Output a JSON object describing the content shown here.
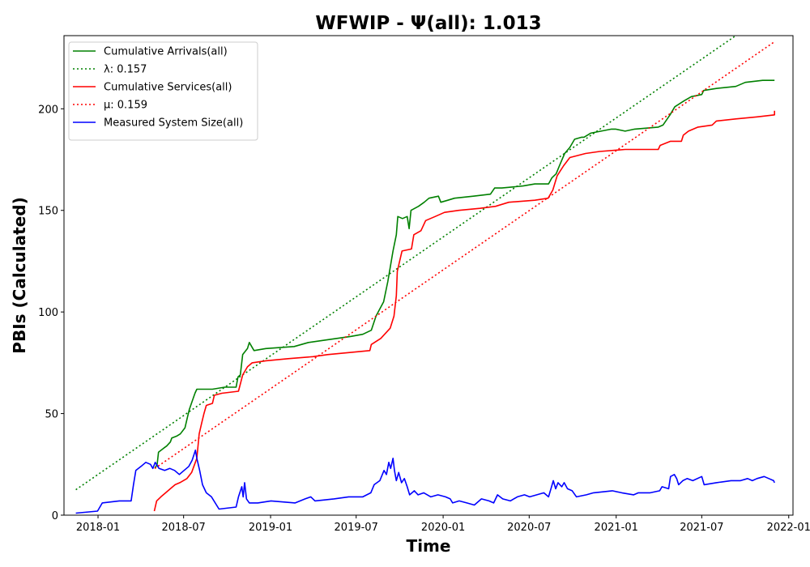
{
  "chart_data": {
    "type": "line",
    "title": "WFWIP -  Ψ(all): 1.013",
    "xlabel": "Time",
    "ylabel": "PBIs (Calculated)",
    "xlim": [
      "2017-10-21",
      "2022-01-10"
    ],
    "ylim": [
      0,
      236
    ],
    "x_ticks": [
      "2018-01",
      "2018-07",
      "2019-01",
      "2019-07",
      "2020-01",
      "2020-07",
      "2021-01",
      "2021-07",
      "2022-01"
    ],
    "y_ticks": [
      0,
      50,
      100,
      150,
      200
    ],
    "grid": false,
    "legend_position": "top-left",
    "series": [
      {
        "name": "Cumulative Arrivals(all)",
        "color": "#008000",
        "style": "solid",
        "points": [
          [
            "2018-05-01",
            23
          ],
          [
            "2018-05-06",
            25
          ],
          [
            "2018-05-09",
            31
          ],
          [
            "2018-05-20",
            33
          ],
          [
            "2018-05-26",
            34
          ],
          [
            "2018-06-03",
            36
          ],
          [
            "2018-06-06",
            38
          ],
          [
            "2018-06-17",
            39
          ],
          [
            "2018-06-24",
            40
          ],
          [
            "2018-07-04",
            43
          ],
          [
            "2018-07-09",
            48
          ],
          [
            "2018-07-13",
            52
          ],
          [
            "2018-07-19",
            56
          ],
          [
            "2018-07-25",
            60
          ],
          [
            "2018-07-29",
            62
          ],
          [
            "2018-08-08",
            62
          ],
          [
            "2018-08-31",
            62
          ],
          [
            "2018-09-26",
            63
          ],
          [
            "2018-10-20",
            63
          ],
          [
            "2018-10-24",
            68
          ],
          [
            "2018-10-29",
            69
          ],
          [
            "2018-11-03",
            79
          ],
          [
            "2018-11-13",
            82
          ],
          [
            "2018-11-17",
            85
          ],
          [
            "2018-11-27",
            81
          ],
          [
            "2018-12-22",
            82
          ],
          [
            "2019-02-20",
            83
          ],
          [
            "2019-03-22",
            85
          ],
          [
            "2019-04-21",
            86
          ],
          [
            "2019-06-20",
            88
          ],
          [
            "2019-07-15",
            89
          ],
          [
            "2019-08-02",
            91
          ],
          [
            "2019-08-12",
            98
          ],
          [
            "2019-08-28",
            105
          ],
          [
            "2019-09-06",
            115
          ],
          [
            "2019-09-17",
            130
          ],
          [
            "2019-09-24",
            138
          ],
          [
            "2019-09-27",
            147
          ],
          [
            "2019-10-07",
            146
          ],
          [
            "2019-10-17",
            147
          ],
          [
            "2019-10-21",
            141
          ],
          [
            "2019-10-25",
            150
          ],
          [
            "2019-11-10",
            152
          ],
          [
            "2019-11-22",
            154
          ],
          [
            "2019-12-02",
            156
          ],
          [
            "2019-12-22",
            157
          ],
          [
            "2019-12-27",
            154
          ],
          [
            "2020-01-11",
            155
          ],
          [
            "2020-01-25",
            156
          ],
          [
            "2020-03-05",
            157
          ],
          [
            "2020-04-10",
            158
          ],
          [
            "2020-04-19",
            161
          ],
          [
            "2020-05-04",
            161
          ],
          [
            "2020-06-18",
            162
          ],
          [
            "2020-07-13",
            163
          ],
          [
            "2020-08-11",
            163
          ],
          [
            "2020-08-18",
            166
          ],
          [
            "2020-08-27",
            168
          ],
          [
            "2020-09-03",
            172
          ],
          [
            "2020-09-14",
            178
          ],
          [
            "2020-09-25",
            181
          ],
          [
            "2020-10-05",
            185
          ],
          [
            "2020-10-20",
            186
          ],
          [
            "2020-10-25",
            186
          ],
          [
            "2020-11-08",
            188
          ],
          [
            "2020-12-22",
            190
          ],
          [
            "2020-12-31",
            190
          ],
          [
            "2021-01-20",
            189
          ],
          [
            "2021-02-09",
            190
          ],
          [
            "2021-03-31",
            191
          ],
          [
            "2021-04-10",
            192
          ],
          [
            "2021-04-25",
            197
          ],
          [
            "2021-05-05",
            201
          ],
          [
            "2021-05-25",
            204
          ],
          [
            "2021-06-09",
            206
          ],
          [
            "2021-07-01",
            207
          ],
          [
            "2021-07-05",
            209
          ],
          [
            "2021-08-01",
            210
          ],
          [
            "2021-09-11",
            211
          ],
          [
            "2021-10-01",
            213
          ],
          [
            "2021-11-07",
            214
          ],
          [
            "2021-11-20",
            214
          ],
          [
            "2021-12-02",
            214
          ]
        ]
      },
      {
        "name": "λ: 0.157",
        "color": "#008000",
        "style": "dotted",
        "points": [
          [
            "2017-11-15",
            12.5
          ],
          [
            "2021-09-11",
            236
          ]
        ]
      },
      {
        "name": "Cumulative Services(all)",
        "color": "#ff0000",
        "style": "solid",
        "points": [
          [
            "2018-04-30",
            2
          ],
          [
            "2018-05-05",
            7
          ],
          [
            "2018-05-14",
            9
          ],
          [
            "2018-05-24",
            11
          ],
          [
            "2018-06-03",
            13
          ],
          [
            "2018-06-13",
            15
          ],
          [
            "2018-06-23",
            16
          ],
          [
            "2018-07-08",
            18
          ],
          [
            "2018-07-18",
            21
          ],
          [
            "2018-07-29",
            28
          ],
          [
            "2018-08-03",
            40
          ],
          [
            "2018-08-08",
            45
          ],
          [
            "2018-08-13",
            50
          ],
          [
            "2018-08-18",
            54
          ],
          [
            "2018-08-31",
            55
          ],
          [
            "2018-09-04",
            59
          ],
          [
            "2018-09-20",
            60
          ],
          [
            "2018-10-25",
            61
          ],
          [
            "2018-11-03",
            69
          ],
          [
            "2018-11-13",
            73
          ],
          [
            "2018-11-23",
            75
          ],
          [
            "2018-12-22",
            76
          ],
          [
            "2019-02-07",
            77
          ],
          [
            "2019-04-01",
            78
          ],
          [
            "2019-05-01",
            79
          ],
          [
            "2019-06-15",
            80
          ],
          [
            "2019-07-30",
            81
          ],
          [
            "2019-08-02",
            84
          ],
          [
            "2019-08-22",
            87
          ],
          [
            "2019-09-11",
            92
          ],
          [
            "2019-09-19",
            98
          ],
          [
            "2019-09-24",
            108
          ],
          [
            "2019-09-26",
            120
          ],
          [
            "2019-10-01",
            125
          ],
          [
            "2019-10-06",
            130
          ],
          [
            "2019-10-26",
            131
          ],
          [
            "2019-10-31",
            138
          ],
          [
            "2019-11-15",
            140
          ],
          [
            "2019-11-25",
            145
          ],
          [
            "2019-12-15",
            147
          ],
          [
            "2020-01-04",
            149
          ],
          [
            "2020-02-03",
            150
          ],
          [
            "2020-03-19",
            151
          ],
          [
            "2020-04-21",
            152
          ],
          [
            "2020-05-19",
            154
          ],
          [
            "2020-07-13",
            155
          ],
          [
            "2020-08-10",
            156
          ],
          [
            "2020-08-20",
            160
          ],
          [
            "2020-08-29",
            167
          ],
          [
            "2020-09-12",
            172
          ],
          [
            "2020-09-25",
            176
          ],
          [
            "2020-10-28",
            178
          ],
          [
            "2020-11-27",
            179
          ],
          [
            "2021-01-20",
            180
          ],
          [
            "2021-03-31",
            180
          ],
          [
            "2021-04-04",
            182
          ],
          [
            "2021-04-26",
            184
          ],
          [
            "2021-05-19",
            184
          ],
          [
            "2021-05-23",
            187
          ],
          [
            "2021-06-03",
            189
          ],
          [
            "2021-06-23",
            191
          ],
          [
            "2021-07-23",
            192
          ],
          [
            "2021-08-01",
            194
          ],
          [
            "2021-09-11",
            195
          ],
          [
            "2021-10-26",
            196
          ],
          [
            "2021-12-02",
            197
          ],
          [
            "2021-12-02",
            199
          ]
        ]
      },
      {
        "name": "μ: 0.159",
        "color": "#ff0000",
        "style": "dotted",
        "points": [
          [
            "2018-05-01",
            23
          ],
          [
            "2021-12-02",
            233
          ]
        ]
      },
      {
        "name": "Measured System Size(all)",
        "color": "#0000ff",
        "style": "solid",
        "points": [
          [
            "2017-11-15",
            1
          ],
          [
            "2017-12-31",
            2
          ],
          [
            "2018-01-10",
            6
          ],
          [
            "2018-02-15",
            7
          ],
          [
            "2018-03-12",
            7
          ],
          [
            "2018-03-17",
            15
          ],
          [
            "2018-03-22",
            22
          ],
          [
            "2018-04-02",
            24
          ],
          [
            "2018-04-12",
            26
          ],
          [
            "2018-04-22",
            25
          ],
          [
            "2018-04-27",
            23
          ],
          [
            "2018-05-02",
            26
          ],
          [
            "2018-05-10",
            23
          ],
          [
            "2018-05-22",
            22
          ],
          [
            "2018-06-02",
            23
          ],
          [
            "2018-06-12",
            22
          ],
          [
            "2018-06-22",
            20
          ],
          [
            "2018-07-02",
            22
          ],
          [
            "2018-07-12",
            24
          ],
          [
            "2018-07-19",
            27
          ],
          [
            "2018-07-26",
            32
          ],
          [
            "2018-07-29",
            28
          ],
          [
            "2018-08-04",
            22
          ],
          [
            "2018-08-10",
            15
          ],
          [
            "2018-08-18",
            11
          ],
          [
            "2018-08-29",
            9
          ],
          [
            "2018-09-14",
            3
          ],
          [
            "2018-10-20",
            4
          ],
          [
            "2018-10-25",
            9
          ],
          [
            "2018-11-01",
            14
          ],
          [
            "2018-11-04",
            9
          ],
          [
            "2018-11-07",
            16
          ],
          [
            "2018-11-11",
            8
          ],
          [
            "2018-11-17",
            6
          ],
          [
            "2018-12-05",
            6
          ],
          [
            "2019-01-02",
            7
          ],
          [
            "2019-02-22",
            6
          ],
          [
            "2019-03-15",
            8
          ],
          [
            "2019-03-27",
            9
          ],
          [
            "2019-04-05",
            7
          ],
          [
            "2019-05-15",
            8
          ],
          [
            "2019-06-15",
            9
          ],
          [
            "2019-07-15",
            9
          ],
          [
            "2019-08-01",
            11
          ],
          [
            "2019-08-08",
            15
          ],
          [
            "2019-08-20",
            17
          ],
          [
            "2019-08-29",
            22
          ],
          [
            "2019-09-03",
            20
          ],
          [
            "2019-09-08",
            26
          ],
          [
            "2019-09-12",
            23
          ],
          [
            "2019-09-17",
            28
          ],
          [
            "2019-09-20",
            22
          ],
          [
            "2019-09-24",
            17
          ],
          [
            "2019-09-29",
            21
          ],
          [
            "2019-10-05",
            16
          ],
          [
            "2019-10-11",
            18
          ],
          [
            "2019-10-17",
            14
          ],
          [
            "2019-10-22",
            10
          ],
          [
            "2019-11-01",
            12
          ],
          [
            "2019-11-09",
            10
          ],
          [
            "2019-11-21",
            11
          ],
          [
            "2019-12-06",
            9
          ],
          [
            "2019-12-21",
            10
          ],
          [
            "2020-01-06",
            9
          ],
          [
            "2020-01-16",
            8
          ],
          [
            "2020-01-21",
            6
          ],
          [
            "2020-02-04",
            7
          ],
          [
            "2020-02-20",
            6
          ],
          [
            "2020-03-07",
            5
          ],
          [
            "2020-03-22",
            8
          ],
          [
            "2020-04-07",
            7
          ],
          [
            "2020-04-17",
            6
          ],
          [
            "2020-04-25",
            10
          ],
          [
            "2020-05-06",
            8
          ],
          [
            "2020-05-22",
            7
          ],
          [
            "2020-06-06",
            9
          ],
          [
            "2020-06-21",
            10
          ],
          [
            "2020-07-02",
            9
          ],
          [
            "2020-07-17",
            10
          ],
          [
            "2020-08-01",
            11
          ],
          [
            "2020-08-11",
            9
          ],
          [
            "2020-08-16",
            13
          ],
          [
            "2020-08-21",
            17
          ],
          [
            "2020-08-26",
            13
          ],
          [
            "2020-08-31",
            16
          ],
          [
            "2020-09-08",
            14
          ],
          [
            "2020-09-13",
            16
          ],
          [
            "2020-09-20",
            13
          ],
          [
            "2020-09-30",
            12
          ],
          [
            "2020-10-09",
            9
          ],
          [
            "2020-10-30",
            10
          ],
          [
            "2020-11-14",
            11
          ],
          [
            "2020-12-24",
            12
          ],
          [
            "2021-01-13",
            11
          ],
          [
            "2021-02-07",
            10
          ],
          [
            "2021-02-17",
            11
          ],
          [
            "2021-03-14",
            11
          ],
          [
            "2021-04-03",
            12
          ],
          [
            "2021-04-08",
            14
          ],
          [
            "2021-04-22",
            13
          ],
          [
            "2021-04-26",
            19
          ],
          [
            "2021-05-04",
            20
          ],
          [
            "2021-05-09",
            18
          ],
          [
            "2021-05-13",
            15
          ],
          [
            "2021-05-22",
            17
          ],
          [
            "2021-05-31",
            18
          ],
          [
            "2021-06-12",
            17
          ],
          [
            "2021-07-01",
            19
          ],
          [
            "2021-07-06",
            15
          ],
          [
            "2021-08-01",
            16
          ],
          [
            "2021-09-01",
            17
          ],
          [
            "2021-09-21",
            17
          ],
          [
            "2021-10-06",
            18
          ],
          [
            "2021-10-16",
            17
          ],
          [
            "2021-10-26",
            18
          ],
          [
            "2021-11-10",
            19
          ],
          [
            "2021-11-20",
            18
          ],
          [
            "2021-11-30",
            17
          ],
          [
            "2021-12-02",
            16
          ]
        ]
      }
    ]
  }
}
